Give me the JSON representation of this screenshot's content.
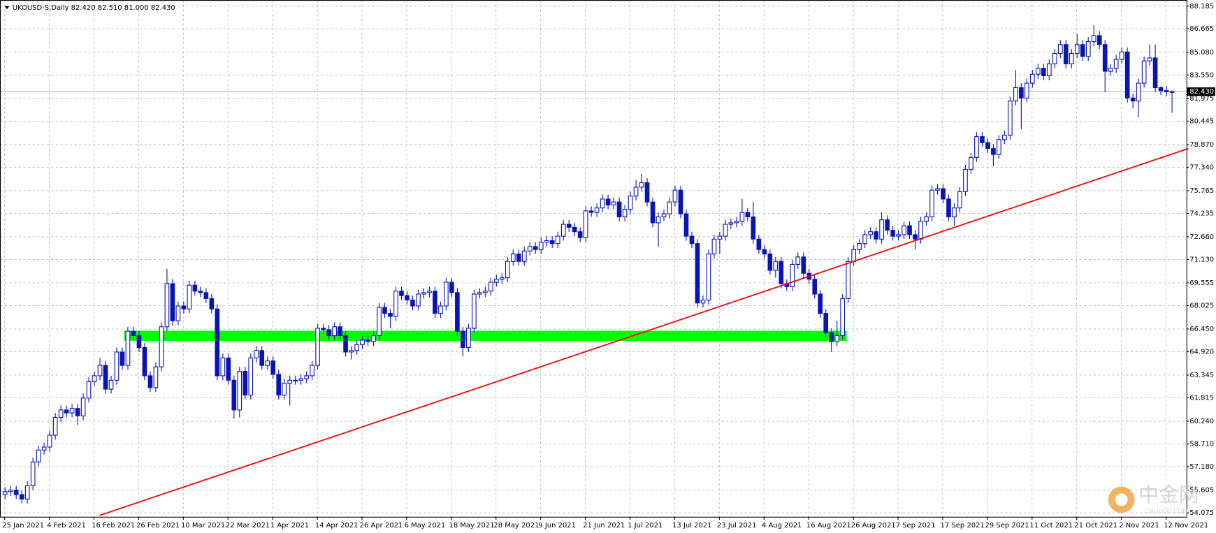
{
  "chart_data": {
    "type": "candlestick",
    "title": "UKOUSD-S,Daily 82.420 82.510 81.000 82.430",
    "up_color": "#ffffff",
    "down_color": "#0a14b4",
    "outline_color": "#0a14b4",
    "ylim": [
      53.81,
      88.6
    ],
    "yticks": [
      88.185,
      86.665,
      {
        "value": 85.08,
        "label": "85.080"
      },
      {
        "value": 83.55,
        "label": "83.550"
      },
      81.975,
      80.445,
      {
        "value": 78.87,
        "label": "78.870"
      },
      {
        "value": 77.34,
        "label": "77.340"
      },
      75.765,
      74.235,
      {
        "value": 72.66,
        "label": "72.660"
      },
      {
        "value": 71.13,
        "label": "71.130"
      },
      69.555,
      68.025,
      {
        "value": 66.45,
        "label": "66.450"
      },
      {
        "value": 64.92,
        "label": "64.920"
      },
      63.345,
      61.815,
      {
        "value": 60.24,
        "label": "60.240"
      },
      {
        "value": 58.71,
        "label": "58.710"
      },
      {
        "value": 57.18,
        "label": "57.180"
      },
      55.605,
      54.075
    ],
    "grid": true,
    "current_price": {
      "value": 82.43,
      "label": "82.430",
      "color": "#8fa5c7"
    },
    "trendline": {
      "x": [
        17,
        212
      ],
      "y": [
        53.9,
        78.6
      ],
      "color": "#ff0000"
    },
    "zone": {
      "x": [
        21.4,
        150.8
      ],
      "y": [
        65.65,
        66.33
      ],
      "color": "#00ff00"
    },
    "watermark": {
      "title": "中金网",
      "subtitle": "CNGOLD.COM"
    },
    "categories": [
      "25 Jan 2021",
      null,
      null,
      null,
      null,
      null,
      null,
      null,
      "4 Feb 2021",
      null,
      null,
      null,
      null,
      null,
      null,
      null,
      "16 Feb 2021",
      null,
      null,
      null,
      null,
      null,
      null,
      null,
      "26 Feb 2021",
      null,
      null,
      null,
      null,
      null,
      null,
      null,
      "10 Mar 2021",
      null,
      null,
      null,
      null,
      null,
      null,
      null,
      "22 Mar 2021",
      null,
      null,
      null,
      null,
      null,
      null,
      null,
      "1 Apr 2021",
      null,
      null,
      null,
      null,
      null,
      null,
      null,
      "14 Apr 2021",
      null,
      null,
      null,
      null,
      null,
      null,
      null,
      "26 Apr 2021",
      null,
      null,
      null,
      null,
      null,
      null,
      null,
      "6 May 2021",
      null,
      null,
      null,
      null,
      null,
      null,
      null,
      "18 May 2021",
      null,
      null,
      null,
      null,
      null,
      null,
      null,
      "28 May 2021",
      null,
      null,
      null,
      null,
      null,
      null,
      null,
      "9 Jun 2021",
      null,
      null,
      null,
      null,
      null,
      null,
      null,
      "21 Jun 2021",
      null,
      null,
      null,
      null,
      null,
      null,
      null,
      "1 Jul 2021",
      null,
      null,
      null,
      null,
      null,
      null,
      null,
      "13 Jul 2021",
      null,
      null,
      null,
      null,
      null,
      null,
      null,
      "23 Jul 2021",
      null,
      null,
      null,
      null,
      null,
      null,
      null,
      "4 Aug 2021",
      null,
      null,
      null,
      null,
      null,
      null,
      null,
      "16 Aug 2021",
      null,
      null,
      null,
      null,
      null,
      null,
      null,
      "26 Aug 2021",
      null,
      null,
      null,
      null,
      null,
      null,
      null,
      "7 Sep 2021",
      null,
      null,
      null,
      null,
      null,
      null,
      null,
      "17 Sep 2021",
      null,
      null,
      null,
      null,
      null,
      null,
      null,
      "29 Sep 2021",
      null,
      null,
      null,
      null,
      null,
      null,
      null,
      "11 Oct 2021",
      null,
      null,
      null,
      null,
      null,
      null,
      null,
      "21 Oct 2021",
      null,
      null,
      null,
      null,
      null,
      null,
      null,
      "2 Nov 2021",
      null,
      null,
      null,
      null,
      null,
      null,
      null,
      "12 Nov 2021",
      null
    ],
    "ohlc": [
      [
        55.3,
        55.8,
        55.0,
        55.5
      ],
      [
        55.5,
        55.9,
        55.2,
        55.6
      ],
      [
        55.6,
        55.9,
        55.0,
        55.3
      ],
      [
        55.3,
        55.6,
        54.7,
        55.0
      ],
      [
        55.0,
        56.2,
        54.7,
        55.9
      ],
      [
        55.9,
        57.8,
        55.6,
        57.5
      ],
      [
        57.5,
        58.6,
        57.2,
        58.3
      ],
      [
        58.3,
        58.8,
        58.0,
        58.5
      ],
      [
        58.5,
        59.6,
        58.2,
        59.3
      ],
      [
        59.3,
        60.8,
        59.0,
        60.5
      ],
      [
        60.5,
        61.3,
        60.2,
        61.0
      ],
      [
        61.0,
        61.3,
        60.5,
        60.8
      ],
      [
        60.8,
        61.4,
        60.5,
        61.1
      ],
      [
        61.1,
        61.4,
        60.0,
        60.6
      ],
      [
        60.6,
        62.1,
        60.3,
        61.8
      ],
      [
        61.8,
        63.2,
        61.5,
        62.9
      ],
      [
        62.9,
        63.6,
        62.6,
        63.3
      ],
      [
        63.3,
        64.5,
        63.0,
        64.0
      ],
      [
        64.0,
        64.3,
        62.1,
        62.4
      ],
      [
        62.4,
        63.3,
        62.1,
        63.0
      ],
      [
        63.0,
        65.2,
        62.7,
        64.9
      ],
      [
        64.9,
        65.2,
        63.7,
        64.0
      ],
      [
        64.0,
        66.6,
        63.7,
        66.3
      ],
      [
        66.3,
        66.6,
        65.7,
        66.0
      ],
      [
        66.0,
        66.3,
        64.9,
        65.2
      ],
      [
        65.2,
        65.5,
        63.0,
        63.3
      ],
      [
        63.3,
        63.6,
        62.2,
        62.5
      ],
      [
        62.5,
        64.2,
        62.2,
        63.9
      ],
      [
        63.9,
        66.9,
        63.6,
        66.6
      ],
      [
        66.6,
        70.5,
        66.3,
        69.5
      ],
      [
        69.5,
        69.8,
        66.7,
        67.0
      ],
      [
        67.0,
        68.3,
        66.7,
        68.0
      ],
      [
        68.0,
        68.3,
        67.5,
        67.8
      ],
      [
        67.8,
        69.7,
        67.5,
        69.4
      ],
      [
        69.4,
        69.7,
        68.7,
        69.0
      ],
      [
        69.0,
        69.3,
        68.6,
        68.9
      ],
      [
        68.9,
        69.2,
        68.2,
        68.5
      ],
      [
        68.5,
        68.8,
        67.5,
        67.8
      ],
      [
        67.8,
        68.1,
        63.0,
        63.3
      ],
      [
        63.3,
        64.8,
        63.0,
        64.5
      ],
      [
        64.5,
        64.8,
        62.7,
        63.0
      ],
      [
        63.0,
        63.3,
        60.4,
        61.0
      ],
      [
        61.0,
        63.9,
        60.5,
        63.6
      ],
      [
        63.6,
        63.9,
        61.7,
        62.0
      ],
      [
        62.0,
        64.8,
        61.7,
        64.5
      ],
      [
        64.5,
        65.3,
        64.2,
        65.0
      ],
      [
        65.0,
        65.3,
        63.7,
        64.0
      ],
      [
        64.0,
        64.6,
        63.7,
        64.3
      ],
      [
        64.3,
        64.6,
        63.1,
        63.4
      ],
      [
        63.4,
        63.7,
        61.7,
        62.0
      ],
      [
        62.0,
        63.1,
        61.7,
        62.8
      ],
      [
        62.8,
        63.3,
        61.3,
        63.0
      ],
      [
        63.0,
        63.3,
        62.7,
        63.0
      ],
      [
        63.0,
        63.4,
        62.7,
        63.1
      ],
      [
        63.1,
        63.6,
        62.8,
        63.3
      ],
      [
        63.3,
        64.3,
        63.0,
        64.0
      ],
      [
        64.0,
        66.8,
        63.7,
        66.5
      ],
      [
        66.5,
        66.8,
        66.1,
        66.4
      ],
      [
        66.4,
        66.7,
        65.7,
        66.0
      ],
      [
        66.0,
        66.9,
        65.7,
        66.6
      ],
      [
        66.6,
        66.9,
        65.7,
        66.0
      ],
      [
        66.0,
        66.3,
        64.6,
        64.9
      ],
      [
        64.9,
        65.3,
        64.4,
        65.0
      ],
      [
        65.0,
        65.7,
        64.7,
        65.4
      ],
      [
        65.4,
        66.0,
        65.1,
        65.7
      ],
      [
        65.7,
        66.0,
        65.3,
        65.6
      ],
      [
        65.6,
        66.3,
        65.3,
        66.0
      ],
      [
        66.0,
        68.2,
        65.7,
        67.9
      ],
      [
        67.9,
        68.2,
        67.2,
        67.5
      ],
      [
        67.5,
        67.8,
        66.5,
        67.3
      ],
      [
        67.3,
        69.3,
        67.0,
        69.0
      ],
      [
        69.0,
        69.3,
        68.4,
        68.7
      ],
      [
        68.7,
        69.0,
        68.1,
        68.4
      ],
      [
        68.4,
        68.7,
        67.7,
        68.0
      ],
      [
        68.0,
        69.1,
        67.7,
        68.8
      ],
      [
        68.8,
        69.2,
        68.5,
        68.9
      ],
      [
        68.9,
        69.3,
        68.6,
        69.0
      ],
      [
        69.0,
        69.3,
        67.2,
        67.5
      ],
      [
        67.5,
        68.3,
        67.2,
        68.0
      ],
      [
        68.0,
        69.9,
        67.7,
        69.6
      ],
      [
        69.6,
        69.9,
        68.6,
        68.9
      ],
      [
        68.9,
        69.2,
        66.0,
        66.3
      ],
      [
        66.3,
        66.6,
        64.6,
        65.2
      ],
      [
        65.2,
        66.8,
        64.9,
        66.5
      ],
      [
        66.5,
        69.1,
        66.2,
        68.8
      ],
      [
        68.8,
        69.2,
        68.5,
        68.9
      ],
      [
        68.9,
        69.3,
        68.6,
        69.0
      ],
      [
        69.0,
        69.9,
        68.7,
        69.6
      ],
      [
        69.6,
        70.1,
        69.3,
        69.8
      ],
      [
        69.8,
        70.2,
        69.5,
        69.9
      ],
      [
        69.9,
        71.3,
        69.6,
        71.0
      ],
      [
        71.0,
        71.8,
        70.7,
        71.5
      ],
      [
        71.5,
        71.8,
        70.7,
        71.0
      ],
      [
        71.0,
        72.0,
        70.7,
        71.7
      ],
      [
        71.7,
        72.3,
        71.4,
        72.0
      ],
      [
        72.0,
        72.3,
        71.5,
        71.8
      ],
      [
        71.8,
        72.6,
        71.5,
        72.3
      ],
      [
        72.3,
        72.7,
        72.0,
        72.4
      ],
      [
        72.4,
        72.7,
        71.9,
        72.2
      ],
      [
        72.2,
        73.0,
        71.9,
        72.7
      ],
      [
        72.7,
        73.8,
        72.4,
        73.5
      ],
      [
        73.5,
        73.8,
        73.0,
        73.3
      ],
      [
        73.3,
        73.6,
        72.7,
        73.0
      ],
      [
        73.0,
        73.3,
        72.3,
        72.6
      ],
      [
        72.6,
        74.7,
        72.3,
        74.4
      ],
      [
        74.4,
        74.7,
        74.0,
        74.3
      ],
      [
        74.3,
        74.9,
        74.0,
        74.6
      ],
      [
        74.6,
        75.5,
        74.3,
        75.2
      ],
      [
        75.2,
        75.5,
        74.5,
        74.8
      ],
      [
        74.8,
        75.3,
        74.5,
        75.0
      ],
      [
        75.0,
        75.3,
        73.7,
        74.0
      ],
      [
        74.0,
        74.8,
        73.7,
        74.5
      ],
      [
        74.5,
        75.7,
        74.2,
        75.4
      ],
      [
        75.4,
        76.5,
        75.1,
        76.0
      ],
      [
        76.0,
        76.9,
        75.7,
        76.3
      ],
      [
        76.3,
        76.6,
        74.7,
        75.0
      ],
      [
        75.0,
        75.3,
        73.3,
        73.6
      ],
      [
        73.6,
        74.3,
        72.0,
        74.0
      ],
      [
        74.0,
        74.5,
        73.7,
        74.2
      ],
      [
        74.2,
        75.3,
        73.9,
        75.0
      ],
      [
        75.0,
        76.1,
        74.7,
        75.8
      ],
      [
        75.8,
        76.1,
        73.9,
        74.2
      ],
      [
        74.2,
        74.5,
        72.4,
        72.7
      ],
      [
        72.7,
        73.0,
        71.9,
        72.2
      ],
      [
        72.2,
        72.5,
        67.9,
        68.2
      ],
      [
        68.2,
        68.7,
        67.9,
        68.4
      ],
      [
        68.4,
        71.8,
        68.1,
        71.5
      ],
      [
        71.5,
        72.8,
        71.2,
        72.5
      ],
      [
        72.5,
        73.0,
        71.5,
        72.7
      ],
      [
        72.7,
        73.8,
        72.4,
        73.5
      ],
      [
        73.5,
        73.9,
        73.2,
        73.6
      ],
      [
        73.6,
        74.0,
        73.3,
        73.7
      ],
      [
        73.7,
        75.2,
        73.4,
        74.3
      ],
      [
        74.3,
        74.6,
        73.7,
        74.0
      ],
      [
        74.0,
        75.0,
        72.2,
        72.5
      ],
      [
        72.5,
        72.8,
        71.5,
        71.8
      ],
      [
        71.8,
        72.1,
        71.2,
        71.5
      ],
      [
        71.5,
        71.8,
        70.1,
        70.4
      ],
      [
        70.4,
        71.3,
        69.9,
        71.0
      ],
      [
        71.0,
        71.3,
        69.2,
        69.5
      ],
      [
        69.5,
        69.8,
        69.0,
        69.3
      ],
      [
        69.3,
        71.1,
        69.0,
        70.8
      ],
      [
        70.8,
        71.6,
        70.5,
        71.3
      ],
      [
        71.3,
        71.6,
        69.9,
        70.2
      ],
      [
        70.2,
        70.5,
        69.5,
        69.8
      ],
      [
        69.8,
        70.1,
        68.5,
        68.8
      ],
      [
        68.8,
        69.1,
        67.2,
        67.5
      ],
      [
        67.5,
        67.8,
        65.9,
        66.2
      ],
      [
        66.2,
        66.5,
        64.9,
        65.6
      ],
      [
        65.6,
        67.0,
        65.3,
        66.0
      ],
      [
        66.0,
        68.8,
        65.7,
        68.5
      ],
      [
        68.5,
        71.3,
        68.2,
        71.0
      ],
      [
        71.0,
        72.1,
        70.7,
        71.8
      ],
      [
        71.8,
        72.5,
        71.5,
        72.2
      ],
      [
        72.2,
        73.1,
        71.9,
        72.8
      ],
      [
        72.8,
        73.3,
        72.5,
        73.0
      ],
      [
        73.0,
        73.3,
        72.2,
        72.5
      ],
      [
        72.5,
        74.3,
        72.2,
        73.8
      ],
      [
        73.8,
        74.1,
        72.8,
        73.1
      ],
      [
        73.1,
        73.4,
        72.4,
        72.7
      ],
      [
        72.7,
        73.1,
        72.4,
        72.8
      ],
      [
        72.8,
        73.7,
        72.5,
        73.4
      ],
      [
        73.4,
        73.7,
        72.5,
        72.8
      ],
      [
        72.8,
        73.1,
        71.8,
        72.5
      ],
      [
        72.5,
        74.0,
        72.2,
        73.7
      ],
      [
        73.7,
        74.3,
        73.4,
        74.0
      ],
      [
        74.0,
        76.1,
        73.7,
        75.8
      ],
      [
        75.8,
        76.2,
        75.5,
        75.9
      ],
      [
        75.9,
        76.2,
        74.9,
        75.2
      ],
      [
        75.2,
        75.5,
        73.7,
        74.0
      ],
      [
        74.0,
        74.9,
        73.4,
        74.6
      ],
      [
        74.6,
        76.0,
        74.3,
        75.7
      ],
      [
        75.7,
        77.5,
        75.4,
        77.2
      ],
      [
        77.2,
        78.3,
        76.9,
        78.0
      ],
      [
        78.0,
        79.7,
        77.7,
        79.4
      ],
      [
        79.4,
        79.7,
        78.7,
        79.0
      ],
      [
        79.0,
        79.3,
        78.3,
        78.6
      ],
      [
        78.6,
        78.9,
        77.4,
        78.2
      ],
      [
        78.2,
        79.5,
        77.9,
        79.2
      ],
      [
        79.2,
        79.8,
        78.9,
        79.5
      ],
      [
        79.5,
        82.1,
        79.2,
        81.8
      ],
      [
        81.8,
        83.9,
        81.5,
        82.7
      ],
      [
        82.7,
        83.0,
        79.9,
        82.0
      ],
      [
        82.0,
        83.3,
        81.7,
        83.0
      ],
      [
        83.0,
        83.9,
        82.7,
        83.6
      ],
      [
        83.6,
        84.3,
        83.3,
        84.0
      ],
      [
        84.0,
        84.3,
        83.2,
        83.5
      ],
      [
        83.5,
        84.6,
        83.2,
        84.3
      ],
      [
        84.3,
        85.3,
        84.0,
        85.0
      ],
      [
        85.0,
        85.9,
        84.7,
        85.6
      ],
      [
        85.6,
        85.9,
        84.0,
        84.3
      ],
      [
        84.3,
        85.3,
        84.0,
        85.0
      ],
      [
        85.0,
        86.3,
        84.7,
        85.6
      ],
      [
        85.6,
        85.9,
        84.5,
        84.8
      ],
      [
        84.8,
        86.1,
        84.5,
        85.8
      ],
      [
        85.8,
        86.9,
        85.5,
        86.2
      ],
      [
        86.2,
        86.5,
        85.3,
        85.6
      ],
      [
        85.6,
        85.9,
        82.4,
        83.8
      ],
      [
        83.8,
        84.3,
        83.5,
        84.0
      ],
      [
        84.0,
        84.9,
        83.7,
        84.6
      ],
      [
        84.6,
        85.4,
        84.3,
        85.1
      ],
      [
        85.1,
        85.4,
        81.7,
        82.0
      ],
      [
        82.0,
        82.3,
        81.3,
        81.8
      ],
      [
        81.8,
        83.3,
        80.7,
        83.0
      ],
      [
        83.0,
        84.8,
        82.7,
        84.5
      ],
      [
        84.5,
        85.6,
        84.2,
        84.7
      ],
      [
        84.7,
        85.6,
        82.4,
        82.7
      ],
      [
        82.7,
        82.8,
        82.2,
        82.5
      ],
      [
        82.5,
        82.8,
        82.1,
        82.42
      ],
      [
        82.42,
        82.51,
        81.0,
        82.43
      ]
    ]
  }
}
